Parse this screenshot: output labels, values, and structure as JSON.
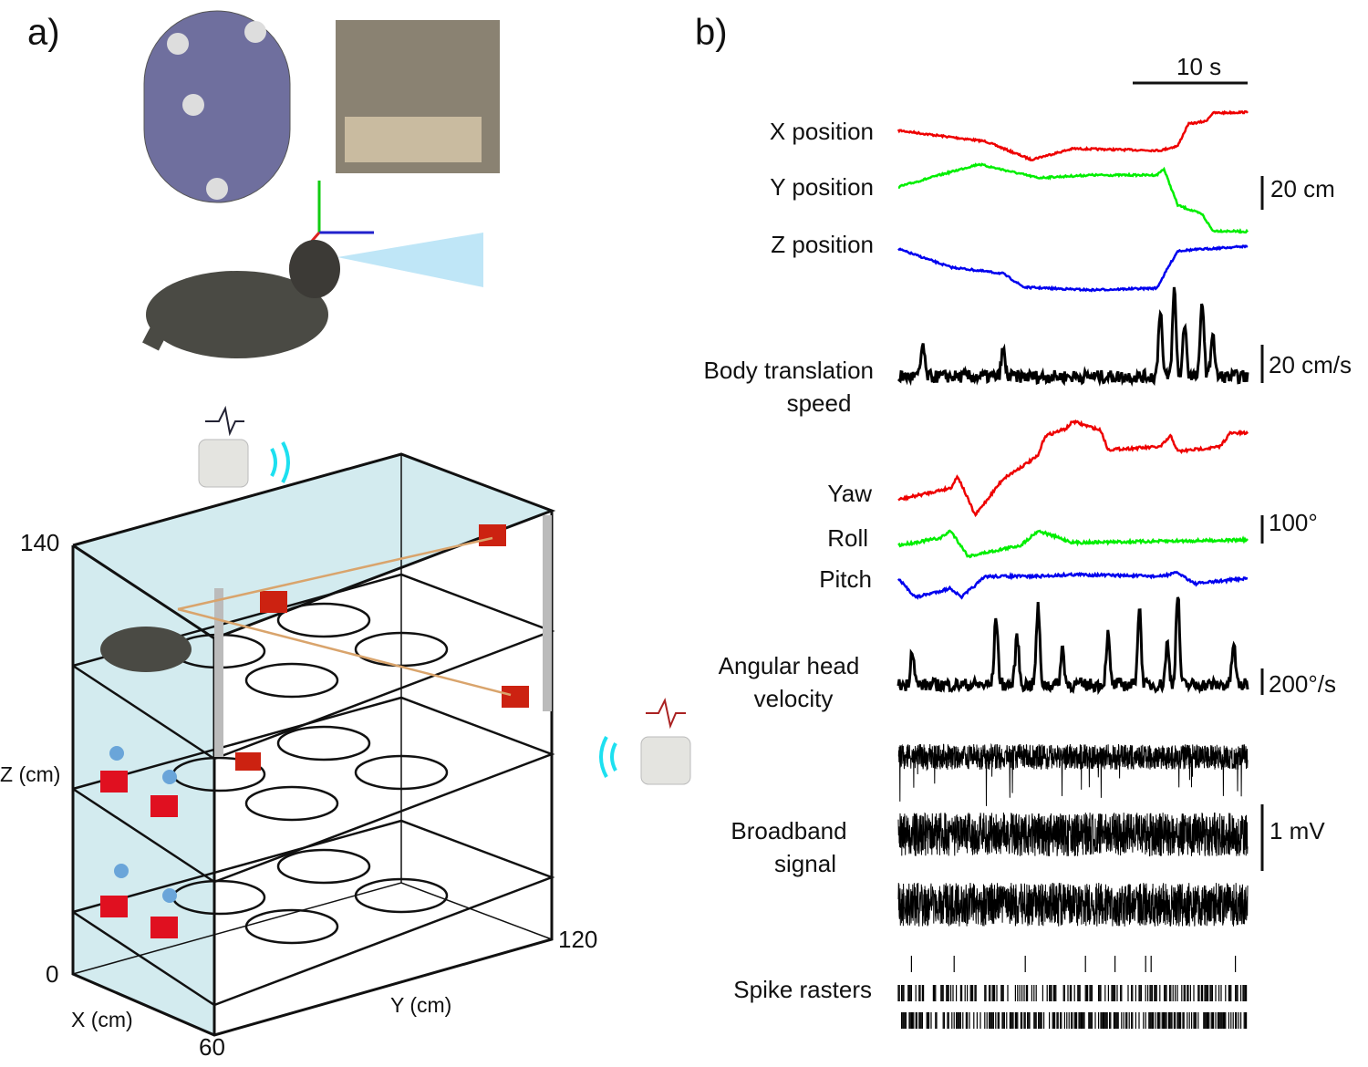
{
  "panel_a": {
    "label": "a)",
    "axes": {
      "z_top": "140",
      "z_bottom": "0",
      "y_end": "120",
      "x_end": "60",
      "z_label": "Z (cm)",
      "x_label": "X (cm)",
      "y_label": "Y (cm)"
    }
  },
  "panel_b": {
    "label": "b)",
    "time_scale": "10 s",
    "traces": {
      "x_position": "X position",
      "y_position": "Y position",
      "z_position": "Z position",
      "position_scale": "20 cm",
      "speed": [
        "Body translation",
        "speed"
      ],
      "speed_scale": "20 cm/s",
      "yaw": "Yaw",
      "roll": "Roll",
      "pitch": "Pitch",
      "angle_scale": "100°",
      "ahv": [
        "Angular head",
        "velocity"
      ],
      "ahv_scale": "200°/s",
      "broadband": [
        "Broadband",
        "signal"
      ],
      "broadband_scale": "1 mV",
      "rasters": "Spike rasters"
    }
  }
}
